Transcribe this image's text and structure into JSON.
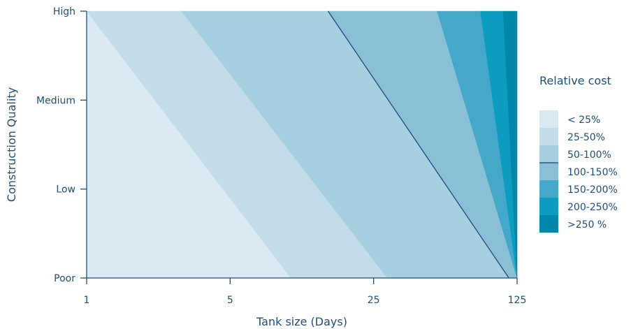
{
  "chart_data": {
    "type": "heatmap",
    "xlabel": "Tank size (Days)",
    "ylabel": "Construction Quality",
    "x_ticks": [
      "1",
      "5",
      "25",
      "125"
    ],
    "y_ticks": [
      "Poor",
      "Low",
      "Medium",
      "High"
    ],
    "x_scale": "log",
    "grid": false,
    "legend": {
      "title": "Relative cost",
      "placement": "right",
      "entries": [
        {
          "label": "< 25%",
          "color": "#dbeaf2"
        },
        {
          "label": "25-50%",
          "color": "#c2dde9"
        },
        {
          "label": "50-100%",
          "color": "#a6cfe0"
        },
        {
          "label": "100-150%",
          "color": "#89c0d6"
        },
        {
          "label": "150-200%",
          "color": "#45a8c8"
        },
        {
          "label": "200-250%",
          "color": "#0b9cbf"
        },
        {
          "label": ">250 %",
          "color": "#0088aa"
        }
      ]
    },
    "boundaries": [
      {
        "label": "< 25% / 25-50%",
        "top": "1",
        "bottom": "9.9"
      },
      {
        "label": "25-50% / 50-100%",
        "top": "2.9",
        "bottom": "29.2"
      },
      {
        "label": "50-100% / 100-150%",
        "top": "15",
        "bottom": "114"
      },
      {
        "label": "100-150% / 150-200%",
        "top": "51",
        "bottom": "125"
      },
      {
        "label": "150-200% / 200-250%",
        "top": "83",
        "bottom": "125"
      },
      {
        "label": "200-250% / >250 %",
        "top": "107",
        "bottom": "125"
      }
    ]
  },
  "colors": {
    "axis": "#1f4e79",
    "contour_line": "#1a3f7a"
  }
}
